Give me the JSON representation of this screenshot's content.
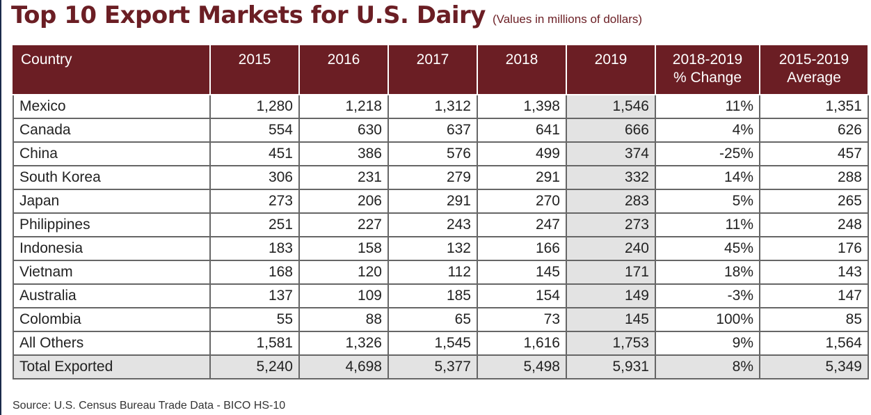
{
  "title": "Top 10 Export Markets for U.S. Dairy",
  "subtitle": "(Values in millions of dollars)",
  "source": "Source: U.S. Census Bureau Trade Data - BICO HS-10",
  "colors": {
    "header_bg": "#6b1e24",
    "highlight": "#e3e3e3"
  },
  "chart_data": {
    "type": "table",
    "title": "Top 10 Export Markets for U.S. Dairy",
    "subtitle": "(Values in millions of dollars)",
    "columns": [
      "Country",
      "2015",
      "2016",
      "2017",
      "2018",
      "2019",
      "2018-2019 % Change",
      "2015-2019 Average"
    ],
    "header_lines": [
      [
        "Country"
      ],
      [
        "2015"
      ],
      [
        "2016"
      ],
      [
        "2017"
      ],
      [
        "2018"
      ],
      [
        "2019"
      ],
      [
        "2018-2019",
        "% Change"
      ],
      [
        "2015-2019",
        "Average"
      ]
    ],
    "rows": [
      [
        "Mexico",
        "1,280",
        "1,218",
        "1,312",
        "1,398",
        "1,546",
        "11%",
        "1,351"
      ],
      [
        "Canada",
        "554",
        "630",
        "637",
        "641",
        "666",
        "4%",
        "626"
      ],
      [
        "China",
        "451",
        "386",
        "576",
        "499",
        "374",
        "-25%",
        "457"
      ],
      [
        "South Korea",
        "306",
        "231",
        "279",
        "291",
        "332",
        "14%",
        "288"
      ],
      [
        "Japan",
        "273",
        "206",
        "291",
        "270",
        "283",
        "5%",
        "265"
      ],
      [
        "Philippines",
        "251",
        "227",
        "243",
        "247",
        "273",
        "11%",
        "248"
      ],
      [
        "Indonesia",
        "183",
        "158",
        "132",
        "166",
        "240",
        "45%",
        "176"
      ],
      [
        "Vietnam",
        "168",
        "120",
        "112",
        "145",
        "171",
        "18%",
        "143"
      ],
      [
        "Australia",
        "137",
        "109",
        "185",
        "154",
        "149",
        "-3%",
        "147"
      ],
      [
        "Colombia",
        "55",
        "88",
        "65",
        "73",
        "145",
        "100%",
        "85"
      ],
      [
        "All Others",
        "1,581",
        "1,326",
        "1,545",
        "1,616",
        "1,753",
        "9%",
        "1,564"
      ]
    ],
    "total_row": [
      "Total Exported",
      "5,240",
      "4,698",
      "5,377",
      "5,498",
      "5,931",
      "8%",
      "5,349"
    ]
  }
}
